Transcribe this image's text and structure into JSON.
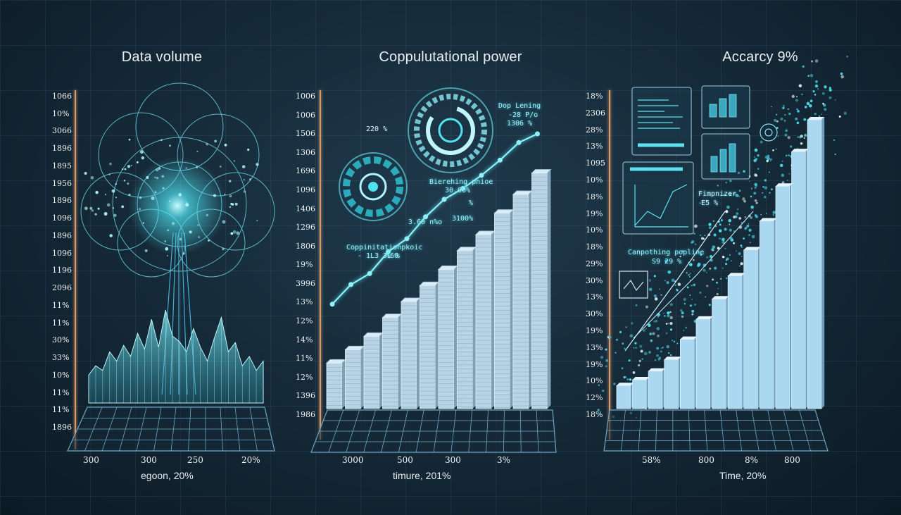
{
  "colors": {
    "background": "#142836",
    "accent": "#4fe3f0",
    "axis": "#d99a6a",
    "bar_light": "#bfe4f7",
    "bar_dark": "#8fb3cc"
  },
  "chart_data": [
    {
      "type": "area",
      "title": "Data volume",
      "xlabel": "egoon, 20%",
      "x_tick_labels": [
        "300",
        "300",
        "250",
        "20%"
      ],
      "y_tick_labels": [
        "1066",
        "10%",
        "3066",
        "1896",
        "1895",
        "1956",
        "1896",
        "1096",
        "1896",
        "1096",
        "1196",
        "2096",
        "11%",
        "11%",
        "30%",
        "33%",
        "10%",
        "11%",
        "11%",
        "1896"
      ],
      "values": [
        0.3,
        0.4,
        0.35,
        0.55,
        0.45,
        0.62,
        0.5,
        0.75,
        0.58,
        0.9,
        0.6,
        1.0,
        0.72,
        0.66,
        0.55,
        0.8,
        0.6,
        0.45,
        0.7,
        0.92,
        0.55,
        0.65,
        0.4,
        0.5,
        0.35,
        0.45
      ],
      "grid": true
    },
    {
      "type": "bar",
      "title": "Coppulutational power",
      "xlabel": "timure, 201%",
      "x_tick_labels": [
        "3000",
        "500",
        "300",
        "3%"
      ],
      "y_tick_labels": [
        "1006",
        "1006",
        "1506",
        "1306",
        "1696",
        "1096",
        "1406",
        "1296",
        "1806",
        "19%",
        "3996",
        "13%",
        "12%",
        "14%",
        "11%",
        "12%",
        "1396",
        "1986"
      ],
      "values": [
        0.17,
        0.22,
        0.27,
        0.34,
        0.4,
        0.46,
        0.52,
        0.59,
        0.65,
        0.73,
        0.8,
        0.88
      ],
      "line": [
        0.22,
        0.31,
        0.36,
        0.46,
        0.52,
        0.62,
        0.7,
        0.75,
        0.81,
        0.88,
        0.96,
        1.0
      ],
      "annotations": [
        "Dop Lening",
        "-28 P/o",
        "1306 %",
        "220 %",
        "Bierehing pnioe",
        "30.00%",
        "%",
        "3.60 n%o",
        "3100%",
        "Coppinitationpkoic",
        "- 1L3 3L %",
        "%60"
      ],
      "grid": true
    },
    {
      "type": "bar",
      "title": "Accarcy 9%",
      "xlabel": "Time, 20%",
      "x_tick_labels": [
        "58%",
        "800",
        "8%",
        "800"
      ],
      "y_tick_labels": [
        "18%",
        "2306",
        "28%",
        "13%",
        "1095",
        "10%",
        "18%",
        "19%",
        "10%",
        "18%",
        "29%",
        "30%",
        "13%",
        "30%",
        "19%",
        "13%",
        "19%",
        "10%",
        "12%",
        "18%"
      ],
      "values": [
        0.08,
        0.1,
        0.13,
        0.17,
        0.24,
        0.31,
        0.38,
        0.46,
        0.55,
        0.65,
        0.77,
        0.89,
        1.0
      ],
      "annotations": [
        "Fimpnizer",
        "E5 %",
        "Canpothing popline",
        "S9 29 %"
      ],
      "grid": true
    }
  ]
}
